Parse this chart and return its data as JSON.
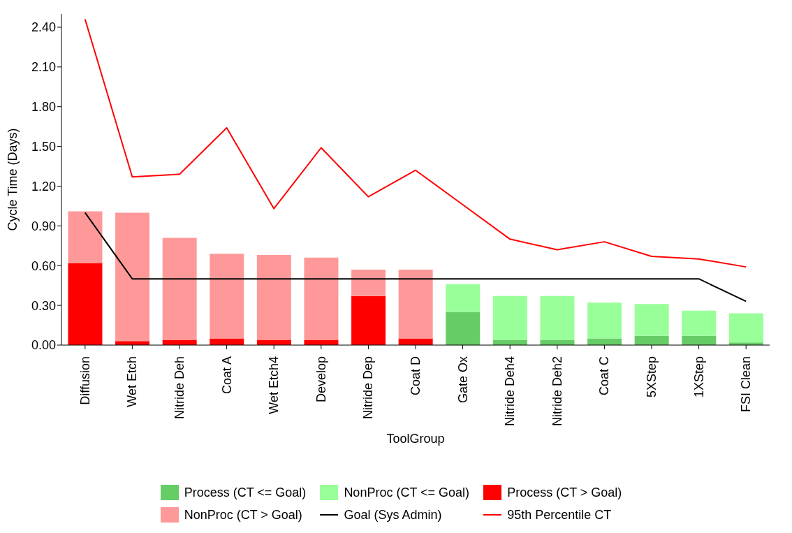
{
  "chart_data": {
    "type": "bar",
    "stacked": true,
    "xlabel": "ToolGroup",
    "ylabel": "Cycle Time (Days)",
    "categories": [
      "Diffusion",
      "Wet Etch",
      "Nitride Deh",
      "Coat A",
      "Wet Etch4",
      "Develop",
      "Nitride Dep",
      "Coat D",
      "Gate Ox",
      "Nitride Deh4",
      "Nitride Deh2",
      "Coat C",
      "5XStep",
      "1XStep",
      "FSI Clean"
    ],
    "ylim": [
      0,
      2.5
    ],
    "yticks": [
      {
        "value": 0,
        "label": "0.00"
      },
      {
        "value": 0.3,
        "label": "0.30"
      },
      {
        "value": 0.6,
        "label": "0.60"
      },
      {
        "value": 0.9,
        "label": "0.90"
      },
      {
        "value": 1.2,
        "label": "1.20"
      },
      {
        "value": 1.5,
        "label": "1.50"
      },
      {
        "value": 1.8,
        "label": "1.80"
      },
      {
        "value": 2.1,
        "label": "2.10"
      },
      {
        "value": 2.4,
        "label": "2.40"
      }
    ],
    "grid": false,
    "legend": "bottom",
    "series": [
      {
        "name": "Process (CT <= Goal)",
        "color": "#66cc66",
        "values": [
          null,
          null,
          null,
          null,
          null,
          null,
          null,
          null,
          0.25,
          0.04,
          0.04,
          0.05,
          0.07,
          0.07,
          0.02
        ]
      },
      {
        "name": "NonProc (CT <= Goal)",
        "color": "#99ff99",
        "values": [
          null,
          null,
          null,
          null,
          null,
          null,
          null,
          null,
          0.21,
          0.33,
          0.33,
          0.27,
          0.24,
          0.19,
          0.22
        ]
      },
      {
        "name": "Process (CT > Goal)",
        "color": "#ff0000",
        "values": [
          0.62,
          0.03,
          0.04,
          0.05,
          0.04,
          0.04,
          0.37,
          0.05,
          null,
          null,
          null,
          null,
          null,
          null,
          null
        ]
      },
      {
        "name": "NonProc (CT > Goal)",
        "color": "#ff9999",
        "values": [
          0.39,
          0.97,
          0.77,
          0.64,
          0.64,
          0.62,
          0.2,
          0.52,
          null,
          null,
          null,
          null,
          null,
          null,
          null
        ]
      },
      {
        "name": "Goal (Sys Admin)",
        "type": "line",
        "color": "#000000",
        "values": [
          1.0,
          0.5,
          0.5,
          0.5,
          0.5,
          0.5,
          0.5,
          0.5,
          0.5,
          0.5,
          0.5,
          0.5,
          0.5,
          0.5,
          0.33
        ]
      },
      {
        "name": "95th Percentile CT",
        "type": "line",
        "color": "#ff0000",
        "values": [
          2.46,
          1.27,
          1.29,
          1.64,
          1.03,
          1.49,
          1.12,
          1.32,
          1.06,
          0.8,
          0.72,
          0.78,
          0.67,
          0.65,
          0.59
        ]
      }
    ]
  }
}
